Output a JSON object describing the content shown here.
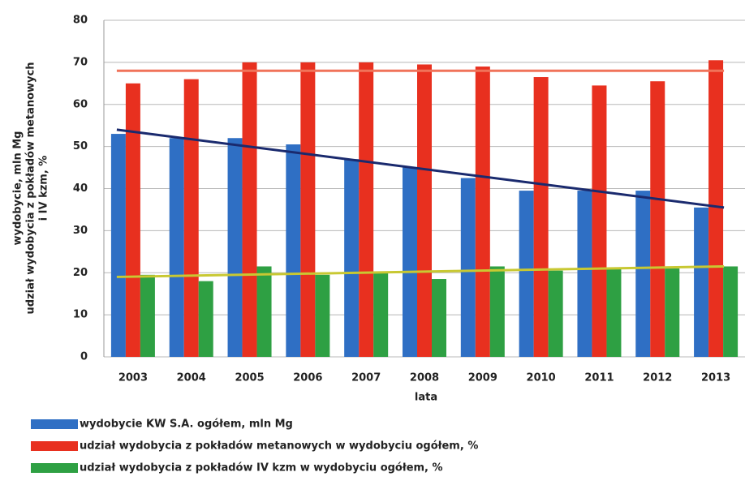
{
  "chart_data": {
    "type": "bar",
    "categories": [
      "2003",
      "2004",
      "2005",
      "2006",
      "2007",
      "2008",
      "2009",
      "2010",
      "2011",
      "2012",
      "2013"
    ],
    "series": [
      {
        "name": "wydobycie KW S.A. ogółem, mln Mg",
        "color": "#2f6fc4",
        "values": [
          53,
          52,
          52,
          50.5,
          47,
          45,
          42.5,
          39.5,
          39.5,
          39.5,
          35.5
        ]
      },
      {
        "name": "udział wydobycia z pokładów metanowych w wydobyciu ogółem, %",
        "color": "#e8301f",
        "values": [
          65,
          66,
          70,
          70,
          70,
          69.5,
          69,
          66.5,
          64.5,
          65.5,
          70.5
        ]
      },
      {
        "name": "udział wydobycia z pokładów IV kzm w wydobyciu ogółem, %",
        "color": "#2ea043",
        "values": [
          19.5,
          18,
          21.5,
          19.5,
          20,
          18.5,
          21.5,
          20.5,
          21,
          21,
          21.5
        ]
      }
    ],
    "trendlines": [
      {
        "color": "#f0735a",
        "values": [
          68,
          68
        ]
      },
      {
        "color": "#1a2a6e",
        "values": [
          54,
          35.5
        ]
      },
      {
        "color": "#c8c832",
        "values": [
          19,
          21.5
        ]
      }
    ],
    "x_label": "lata",
    "y_label": [
      "wydobycie, mln Mg",
      "udział wydobycia z pokładów metanowych",
      "i IV kzm, %"
    ],
    "ylim": [
      0,
      80
    ],
    "yticks": [
      0,
      10,
      20,
      30,
      40,
      50,
      60,
      70,
      80
    ],
    "grid": true,
    "legend": "bottom"
  }
}
